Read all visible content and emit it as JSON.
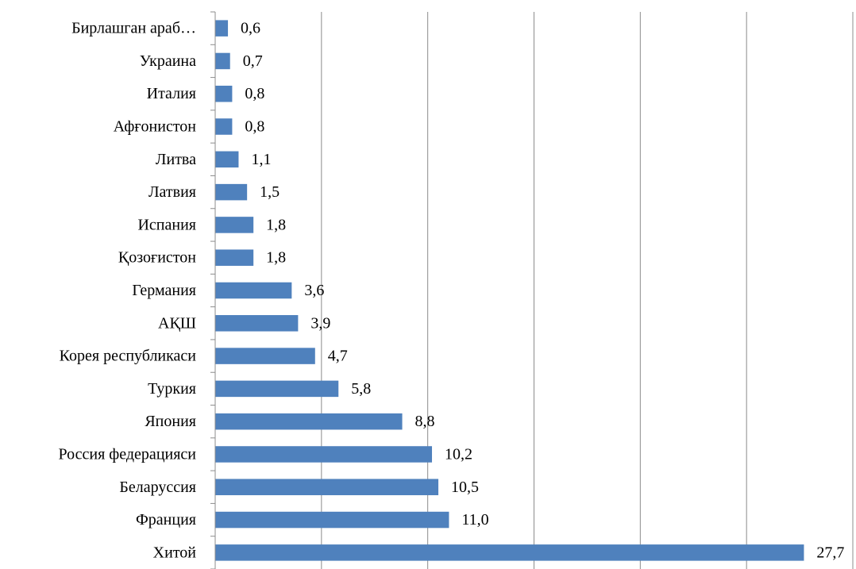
{
  "chart_data": {
    "type": "bar",
    "orientation": "horizontal",
    "categories": [
      "Бирлашган араб…",
      "Украина",
      "Италия",
      "Афғонистон",
      "Литва",
      "Латвия",
      "Испания",
      "Қозоғистон",
      "Германия",
      "АҚШ",
      "Корея  республикаси",
      "Туркия",
      "Япония",
      "Россия федерацияси",
      "Беларуссия",
      "Франция",
      "Хитой"
    ],
    "values": [
      0.6,
      0.7,
      0.8,
      0.8,
      1.1,
      1.5,
      1.8,
      1.8,
      3.6,
      3.9,
      4.7,
      5.8,
      8.8,
      10.2,
      10.5,
      11.0,
      27.7
    ],
    "value_labels": [
      "0,6",
      "0,7",
      "0,8",
      "0,8",
      "1,1",
      "1,5",
      "1,8",
      "1,8",
      "3,6",
      "3,9",
      "4,7",
      "5,8",
      "8,8",
      "10,2",
      "10,5",
      "11,0",
      "27,7"
    ],
    "xlim": [
      0,
      30
    ],
    "x_gridline_step": 5,
    "grid": "vertical",
    "bar_color": "#4f81bd",
    "title": "",
    "xlabel": "",
    "ylabel": ""
  }
}
